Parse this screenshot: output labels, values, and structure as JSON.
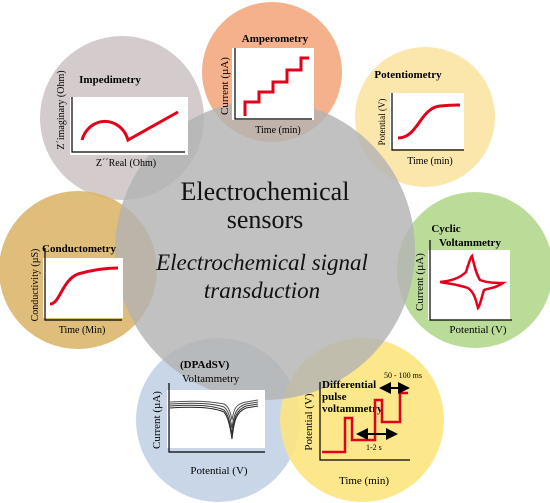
{
  "center": {
    "title_line1": "Electrochemical",
    "title_line2": "sensors",
    "subtitle_line1": "Electrochemical signal",
    "subtitle_line2": "transduction"
  },
  "techniques": {
    "amperometry": {
      "title": "Amperometry",
      "ylabel": "Current (µA)",
      "xlabel": "Time (min)",
      "color": "#f4a97e"
    },
    "potentiometry": {
      "title": "Potentiometry",
      "ylabel": "Potential (V)",
      "xlabel": "Time (min)",
      "color": "#fbe3a3"
    },
    "impedimetry": {
      "title": "Impedimetry",
      "ylabel": "Z´imaginary (Ohm)",
      "xlabel": "Z´´Real (Ohm)",
      "color": "#cfc6c6"
    },
    "cyclic": {
      "title_line1": "Cyclic",
      "title_line2": "Voltammetry",
      "ylabel": "Current (µA)",
      "xlabel": "Potential (V)",
      "color": "#b4d88e"
    },
    "conductometry": {
      "title": "Conductometry",
      "ylabel": "Conductivity (µS)",
      "xlabel": "Time (Min)",
      "color": "#dcb66b"
    },
    "dpadsv": {
      "title_line1": "(DPAdSV)",
      "title_line2": "Voltammetry",
      "ylabel": "Current (µA)",
      "xlabel": "Potential (V)",
      "color": "#c2d1e6"
    },
    "dpv": {
      "title_line1": "Differential",
      "title_line2": "pulse",
      "title_line3": "voltammetry",
      "ylabel": "Potential (V)",
      "xlabel": "Time (min)",
      "annotation_top": "50 - 100 ms",
      "annotation_bottom": "1-2 s",
      "color": "#fce47e"
    }
  },
  "colors": {
    "center": "#b3b3b3",
    "curve": "#e3001b"
  }
}
